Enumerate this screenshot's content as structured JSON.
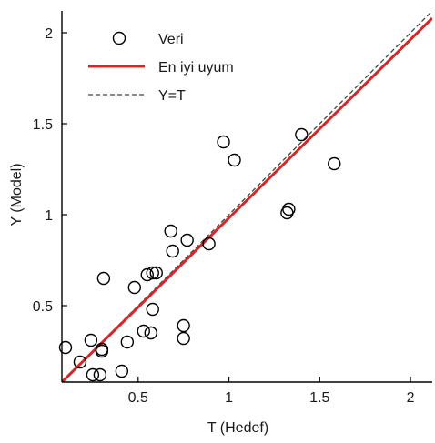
{
  "chart_data": {
    "type": "scatter",
    "title": "",
    "xlabel": "T (Hedef)",
    "ylabel": "Y (Model)",
    "xlim": [
      0.08,
      2.12
    ],
    "ylim": [
      0.08,
      2.12
    ],
    "xticks": [
      0.5,
      1,
      1.5,
      2
    ],
    "yticks": [
      0.5,
      1,
      1.5,
      2
    ],
    "xtick_labels": [
      "0.5",
      "1",
      "1.5",
      "2"
    ],
    "ytick_labels": [
      "0.5",
      "1",
      "1.5",
      "2"
    ],
    "grid": false,
    "legend_position": "top-left",
    "series": [
      {
        "name": "Veri",
        "kind": "markers",
        "marker": "open-circle",
        "color": "#000000",
        "x": [
          0.1,
          0.18,
          0.24,
          0.25,
          0.29,
          0.3,
          0.3,
          0.31,
          0.41,
          0.44,
          0.48,
          0.53,
          0.55,
          0.57,
          0.58,
          0.58,
          0.6,
          0.68,
          0.69,
          0.75,
          0.75,
          0.77,
          0.89,
          0.97,
          1.03,
          1.32,
          1.33,
          1.4,
          1.58
        ],
        "y": [
          0.27,
          0.19,
          0.31,
          0.12,
          0.12,
          0.25,
          0.26,
          0.65,
          0.14,
          0.3,
          0.6,
          0.36,
          0.67,
          0.35,
          0.48,
          0.68,
          0.68,
          0.91,
          0.8,
          0.39,
          0.32,
          0.86,
          0.84,
          1.4,
          1.3,
          1.01,
          1.03,
          1.44,
          1.28
        ]
      },
      {
        "name": "En iyi uyum",
        "kind": "line",
        "color": "#d62728",
        "x": [
          0.08,
          2.12
        ],
        "y": [
          0.08,
          2.08
        ]
      },
      {
        "name": "Y=T",
        "kind": "dashed-line",
        "color": "#444444",
        "x": [
          0.08,
          2.12
        ],
        "y": [
          0.08,
          2.12
        ]
      }
    ]
  }
}
